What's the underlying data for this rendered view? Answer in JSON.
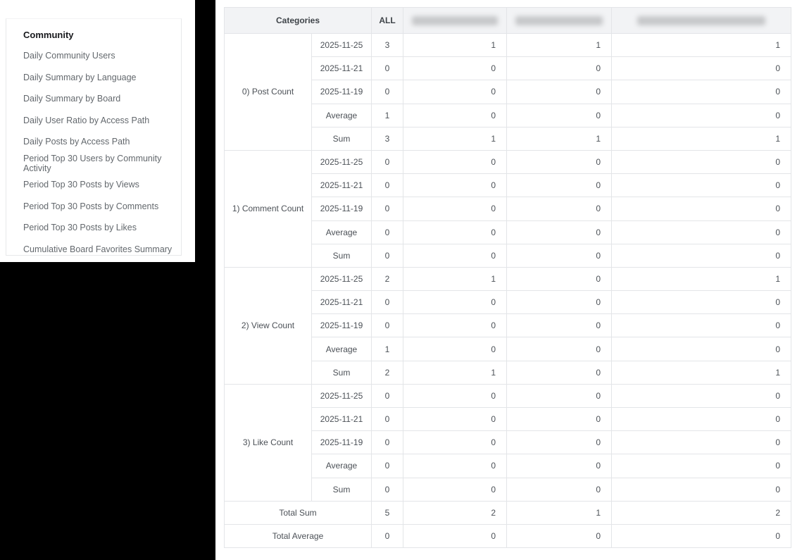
{
  "sidebar": {
    "title": "Community",
    "items": [
      "Daily Community Users",
      "Daily Summary by Language",
      "Daily Summary by Board",
      "Daily User Ratio by Access Path",
      "Daily Posts by Access Path",
      "Period Top 30 Users by Community Activity",
      "Period Top 30 Posts by Views",
      "Period Top 30 Posts by Comments",
      "Period Top 30 Posts by Likes",
      "Cumulative Board Favorites Summary"
    ]
  },
  "table": {
    "header": {
      "categories_label": "Categories",
      "all_label": "ALL"
    },
    "redacted_columns": [
      {
        "name": "redacted-board-column-1",
        "blur_width_pct": 84
      },
      {
        "name": "redacted-board-column-2",
        "blur_width_pct": 84
      },
      {
        "name": "redacted-board-column-3",
        "blur_width_pct": 72
      }
    ],
    "groups": [
      {
        "label": "0) Post Count",
        "rows": [
          {
            "label": "2025-11-25",
            "summary": false,
            "all": "3",
            "values": [
              "1",
              "1",
              "1"
            ]
          },
          {
            "label": "2025-11-21",
            "summary": false,
            "all": "0",
            "values": [
              "0",
              "0",
              "0"
            ]
          },
          {
            "label": "2025-11-19",
            "summary": false,
            "all": "0",
            "values": [
              "0",
              "0",
              "0"
            ]
          },
          {
            "label": "Average",
            "summary": true,
            "all": "1",
            "values": [
              "0",
              "0",
              "0"
            ]
          },
          {
            "label": "Sum",
            "summary": true,
            "all": "3",
            "values": [
              "1",
              "1",
              "1"
            ]
          }
        ]
      },
      {
        "label": "1) Comment Count",
        "rows": [
          {
            "label": "2025-11-25",
            "summary": false,
            "all": "0",
            "values": [
              "0",
              "0",
              "0"
            ]
          },
          {
            "label": "2025-11-21",
            "summary": false,
            "all": "0",
            "values": [
              "0",
              "0",
              "0"
            ]
          },
          {
            "label": "2025-11-19",
            "summary": false,
            "all": "0",
            "values": [
              "0",
              "0",
              "0"
            ]
          },
          {
            "label": "Average",
            "summary": true,
            "all": "0",
            "values": [
              "0",
              "0",
              "0"
            ]
          },
          {
            "label": "Sum",
            "summary": true,
            "all": "0",
            "values": [
              "0",
              "0",
              "0"
            ]
          }
        ]
      },
      {
        "label": "2) View Count",
        "rows": [
          {
            "label": "2025-11-25",
            "summary": false,
            "all": "2",
            "values": [
              "1",
              "0",
              "1"
            ]
          },
          {
            "label": "2025-11-21",
            "summary": false,
            "all": "0",
            "values": [
              "0",
              "0",
              "0"
            ]
          },
          {
            "label": "2025-11-19",
            "summary": false,
            "all": "0",
            "values": [
              "0",
              "0",
              "0"
            ]
          },
          {
            "label": "Average",
            "summary": true,
            "all": "1",
            "values": [
              "0",
              "0",
              "0"
            ]
          },
          {
            "label": "Sum",
            "summary": true,
            "all": "2",
            "values": [
              "1",
              "0",
              "1"
            ]
          }
        ]
      },
      {
        "label": "3) Like Count",
        "rows": [
          {
            "label": "2025-11-25",
            "summary": false,
            "all": "0",
            "values": [
              "0",
              "0",
              "0"
            ]
          },
          {
            "label": "2025-11-21",
            "summary": false,
            "all": "0",
            "values": [
              "0",
              "0",
              "0"
            ]
          },
          {
            "label": "2025-11-19",
            "summary": false,
            "all": "0",
            "values": [
              "0",
              "0",
              "0"
            ]
          },
          {
            "label": "Average",
            "summary": true,
            "all": "0",
            "values": [
              "0",
              "0",
              "0"
            ]
          },
          {
            "label": "Sum",
            "summary": true,
            "all": "0",
            "values": [
              "0",
              "0",
              "0"
            ]
          }
        ]
      }
    ],
    "totals": [
      {
        "label": "Total Sum",
        "all": "5",
        "values": [
          "2",
          "1",
          "2"
        ]
      },
      {
        "label": "Total Average",
        "all": "0",
        "values": [
          "0",
          "0",
          "0"
        ]
      }
    ]
  },
  "colors": {
    "page_bg": "#000000",
    "panel_bg": "#ffffff",
    "header_bg": "#f2f3f5",
    "gray_cell_bg": "#f6f7f9",
    "summary_row_bg": "#fbfce3",
    "border": "#e3e5e8",
    "text": "#4c5157"
  }
}
